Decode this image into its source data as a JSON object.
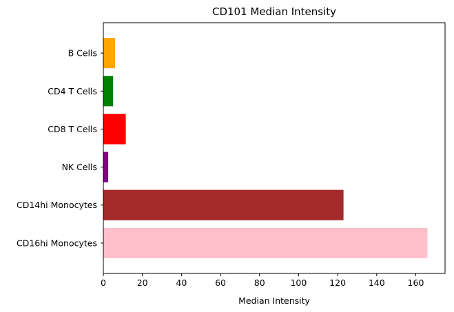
{
  "chart_data": {
    "type": "bar",
    "orientation": "horizontal",
    "title": "CD101 Median Intensity",
    "xlabel": "Median Intensity",
    "ylabel": "",
    "xlim": [
      0,
      175
    ],
    "x_ticks": [
      0,
      20,
      40,
      60,
      80,
      100,
      120,
      140,
      160
    ],
    "x_tick_labels": [
      "0",
      "20",
      "40",
      "60",
      "80",
      "100",
      "120",
      "140",
      "160"
    ],
    "categories": [
      "B Cells",
      "CD4 T Cells",
      "CD8 T Cells",
      "NK Cells",
      "CD14hi Monocytes",
      "CD16hi Monocytes"
    ],
    "values": [
      6,
      5,
      11.5,
      2.5,
      123,
      166
    ],
    "colors": [
      "#ffa500",
      "#008000",
      "#ff0000",
      "#800080",
      "#a52a2a",
      "#ffc0cb"
    ],
    "grid": false,
    "legend": false
  }
}
